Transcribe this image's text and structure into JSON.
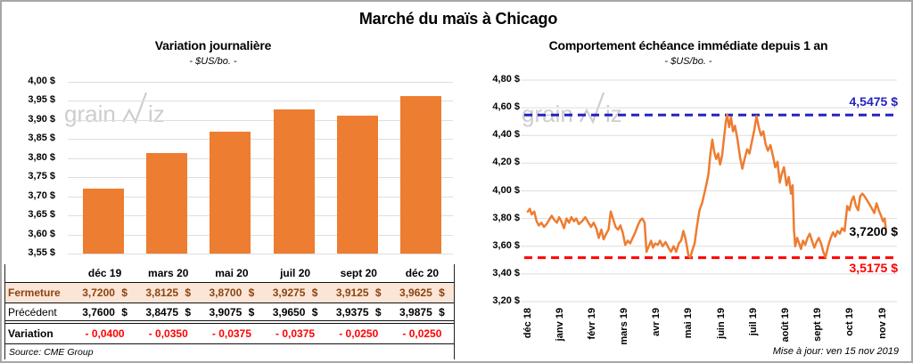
{
  "page": {
    "title": "Marché du maïs à Chicago",
    "watermark_prefix": "grain",
    "watermark_suffix": "iz",
    "updated": "Mise à jour: ven 15 nov 2019"
  },
  "colors": {
    "orange": "#ED7D31",
    "blue": "#2323C1",
    "red": "#FF0000",
    "brown": "#8A4412",
    "peach": "#FBE5D6",
    "grid": "#DEDEDE",
    "frame_border": "#A6A6A6",
    "watermark": "#CBCBCB"
  },
  "chart_data": [
    {
      "type": "bar",
      "title": "Variation journalière",
      "subtitle": "- $US/bo. -",
      "categories": [
        "déc 19",
        "mars 20",
        "mai 20",
        "juil 20",
        "sept 20",
        "déc 20"
      ],
      "values": [
        3.72,
        3.8125,
        3.87,
        3.9275,
        3.9125,
        3.9625
      ],
      "ylim": [
        3.55,
        4.0
      ],
      "ytick_values": [
        4.0,
        3.95,
        3.9,
        3.85,
        3.8,
        3.75,
        3.7,
        3.65,
        3.6,
        3.55
      ],
      "ytick_labels": [
        "4,00 $",
        "3,95 $",
        "3,90 $",
        "3,85 $",
        "3,80 $",
        "3,75 $",
        "3,70 $",
        "3,65 $",
        "3,60 $",
        "3,55 $"
      ],
      "bar_color": "#ED7D31",
      "grid": true,
      "table": {
        "rows": [
          {
            "name": "fermeture",
            "label": "Fermeture",
            "values": [
              "3,7200 $",
              "3,8125 $",
              "3,8700 $",
              "3,9275 $",
              "3,9125 $",
              "3,9625 $"
            ]
          },
          {
            "name": "precedent",
            "label": "Précédent",
            "values": [
              "3,7600 $",
              "3,8475 $",
              "3,9075 $",
              "3,9650 $",
              "3,9375 $",
              "3,9875 $"
            ]
          },
          {
            "name": "variation",
            "label": "Variation",
            "values": [
              "- 0,0400",
              "- 0,0350",
              "- 0,0375",
              "- 0,0375",
              "- 0,0250",
              "- 0,0250"
            ]
          }
        ],
        "source": "Source: CME Group"
      }
    },
    {
      "type": "line",
      "title": "Comportement échéance immédiate depuis 1 an",
      "subtitle": "- $US/bo. -",
      "line_color": "#ED7D31",
      "ylim": [
        3.2,
        4.8
      ],
      "ytick_values": [
        4.8,
        4.6,
        4.4,
        4.2,
        4.0,
        3.8,
        3.6,
        3.4,
        3.2
      ],
      "ytick_labels": [
        "4,80 $",
        "4,60 $",
        "4,40 $",
        "4,20 $",
        "4,00 $",
        "3,80 $",
        "3,60 $",
        "3,40 $",
        "3,20 $"
      ],
      "xtick_labels": [
        "déc 18",
        "janv 19",
        "févr 19",
        "mars 19",
        "avr 19",
        "mai 19",
        "juin 19",
        "juil 19",
        "août 19",
        "sept 19",
        "oct 19",
        "nov 19"
      ],
      "grid": true,
      "hlines": [
        {
          "name": "resistance",
          "value": 4.5475,
          "label": "4,5475 $",
          "color": "#2323C1"
        },
        {
          "name": "support",
          "value": 3.5175,
          "label": "3,5175 $",
          "color": "#FF0000"
        }
      ],
      "last_point": {
        "value": 3.72,
        "label": "3,7200 $"
      },
      "points": [
        [
          0,
          3.85
        ],
        [
          0.06,
          3.87
        ],
        [
          0.12,
          3.83
        ],
        [
          0.2,
          3.85
        ],
        [
          0.27,
          3.78
        ],
        [
          0.34,
          3.75
        ],
        [
          0.42,
          3.77
        ],
        [
          0.5,
          3.74
        ],
        [
          0.58,
          3.76
        ],
        [
          0.66,
          3.79
        ],
        [
          0.74,
          3.82
        ],
        [
          0.82,
          3.79
        ],
        [
          0.9,
          3.77
        ],
        [
          0.97,
          3.81
        ],
        [
          1.04,
          3.78
        ],
        [
          1.12,
          3.73
        ],
        [
          1.2,
          3.8
        ],
        [
          1.28,
          3.77
        ],
        [
          1.35,
          3.81
        ],
        [
          1.43,
          3.78
        ],
        [
          1.5,
          3.8
        ],
        [
          1.58,
          3.76
        ],
        [
          1.68,
          3.78
        ],
        [
          1.78,
          3.81
        ],
        [
          1.88,
          3.77
        ],
        [
          1.96,
          3.74
        ],
        [
          2.04,
          3.77
        ],
        [
          2.12,
          3.73
        ],
        [
          2.2,
          3.66
        ],
        [
          2.28,
          3.72
        ],
        [
          2.35,
          3.65
        ],
        [
          2.43,
          3.69
        ],
        [
          2.5,
          3.72
        ],
        [
          2.57,
          3.85
        ],
        [
          2.64,
          3.8
        ],
        [
          2.72,
          3.74
        ],
        [
          2.8,
          3.72
        ],
        [
          2.87,
          3.75
        ],
        [
          2.94,
          3.7
        ],
        [
          3.02,
          3.61
        ],
        [
          3.1,
          3.64
        ],
        [
          3.17,
          3.62
        ],
        [
          3.25,
          3.66
        ],
        [
          3.33,
          3.7
        ],
        [
          3.41,
          3.75
        ],
        [
          3.49,
          3.79
        ],
        [
          3.55,
          3.8
        ],
        [
          3.62,
          3.77
        ],
        [
          3.68,
          3.56
        ],
        [
          3.75,
          3.6
        ],
        [
          3.82,
          3.64
        ],
        [
          3.88,
          3.59
        ],
        [
          3.95,
          3.62
        ],
        [
          4.03,
          3.61
        ],
        [
          4.1,
          3.64
        ],
        [
          4.18,
          3.6
        ],
        [
          4.27,
          3.63
        ],
        [
          4.36,
          3.59
        ],
        [
          4.44,
          3.56
        ],
        [
          4.52,
          3.6
        ],
        [
          4.6,
          3.56
        ],
        [
          4.68,
          3.62
        ],
        [
          4.75,
          3.64
        ],
        [
          4.82,
          3.71
        ],
        [
          4.88,
          3.66
        ],
        [
          4.93,
          3.6
        ],
        [
          4.98,
          3.53
        ],
        [
          5.04,
          3.52
        ],
        [
          5.1,
          3.57
        ],
        [
          5.17,
          3.62
        ],
        [
          5.24,
          3.74
        ],
        [
          5.32,
          3.86
        ],
        [
          5.4,
          3.91
        ],
        [
          5.47,
          3.98
        ],
        [
          5.54,
          4.05
        ],
        [
          5.6,
          4.12
        ],
        [
          5.66,
          4.27
        ],
        [
          5.72,
          4.37
        ],
        [
          5.78,
          4.28
        ],
        [
          5.84,
          4.23
        ],
        [
          5.9,
          4.27
        ],
        [
          5.96,
          4.19
        ],
        [
          6.02,
          4.25
        ],
        [
          6.08,
          4.38
        ],
        [
          6.14,
          4.5
        ],
        [
          6.18,
          4.55
        ],
        [
          6.24,
          4.46
        ],
        [
          6.3,
          4.53
        ],
        [
          6.36,
          4.43
        ],
        [
          6.42,
          4.47
        ],
        [
          6.5,
          4.37
        ],
        [
          6.58,
          4.24
        ],
        [
          6.65,
          4.16
        ],
        [
          6.72,
          4.23
        ],
        [
          6.8,
          4.3
        ],
        [
          6.87,
          4.27
        ],
        [
          6.94,
          4.35
        ],
        [
          7.02,
          4.44
        ],
        [
          7.09,
          4.54
        ],
        [
          7.16,
          4.46
        ],
        [
          7.23,
          4.4
        ],
        [
          7.3,
          4.43
        ],
        [
          7.37,
          4.34
        ],
        [
          7.44,
          4.29
        ],
        [
          7.52,
          4.33
        ],
        [
          7.6,
          4.25
        ],
        [
          7.67,
          4.17
        ],
        [
          7.74,
          4.21
        ],
        [
          7.81,
          4.06
        ],
        [
          7.87,
          4.12
        ],
        [
          7.94,
          4.17
        ],
        [
          8.02,
          4.04
        ],
        [
          8.09,
          4.1
        ],
        [
          8.16,
          3.98
        ],
        [
          8.21,
          4.04
        ],
        [
          8.25,
          3.72
        ],
        [
          8.29,
          3.6
        ],
        [
          8.35,
          3.66
        ],
        [
          8.41,
          3.62
        ],
        [
          8.47,
          3.58
        ],
        [
          8.53,
          3.64
        ],
        [
          8.6,
          3.61
        ],
        [
          8.67,
          3.66
        ],
        [
          8.74,
          3.69
        ],
        [
          8.81,
          3.64
        ],
        [
          8.88,
          3.59
        ],
        [
          8.95,
          3.63
        ],
        [
          9.02,
          3.66
        ],
        [
          9.09,
          3.62
        ],
        [
          9.16,
          3.56
        ],
        [
          9.23,
          3.52
        ],
        [
          9.31,
          3.6
        ],
        [
          9.39,
          3.66
        ],
        [
          9.46,
          3.7
        ],
        [
          9.53,
          3.67
        ],
        [
          9.6,
          3.71
        ],
        [
          9.67,
          3.69
        ],
        [
          9.74,
          3.73
        ],
        [
          9.82,
          3.71
        ],
        [
          9.9,
          3.89
        ],
        [
          9.97,
          3.86
        ],
        [
          10.04,
          3.93
        ],
        [
          10.1,
          3.96
        ],
        [
          10.17,
          3.89
        ],
        [
          10.24,
          3.86
        ],
        [
          10.3,
          3.96
        ],
        [
          10.37,
          3.98
        ],
        [
          10.44,
          3.96
        ],
        [
          10.52,
          3.93
        ],
        [
          10.6,
          3.9
        ],
        [
          10.67,
          3.87
        ],
        [
          10.74,
          3.84
        ],
        [
          10.81,
          3.91
        ],
        [
          10.88,
          3.86
        ],
        [
          10.95,
          3.82
        ],
        [
          11.01,
          3.78
        ],
        [
          11.06,
          3.8
        ],
        [
          11.1,
          3.72
        ]
      ]
    }
  ]
}
